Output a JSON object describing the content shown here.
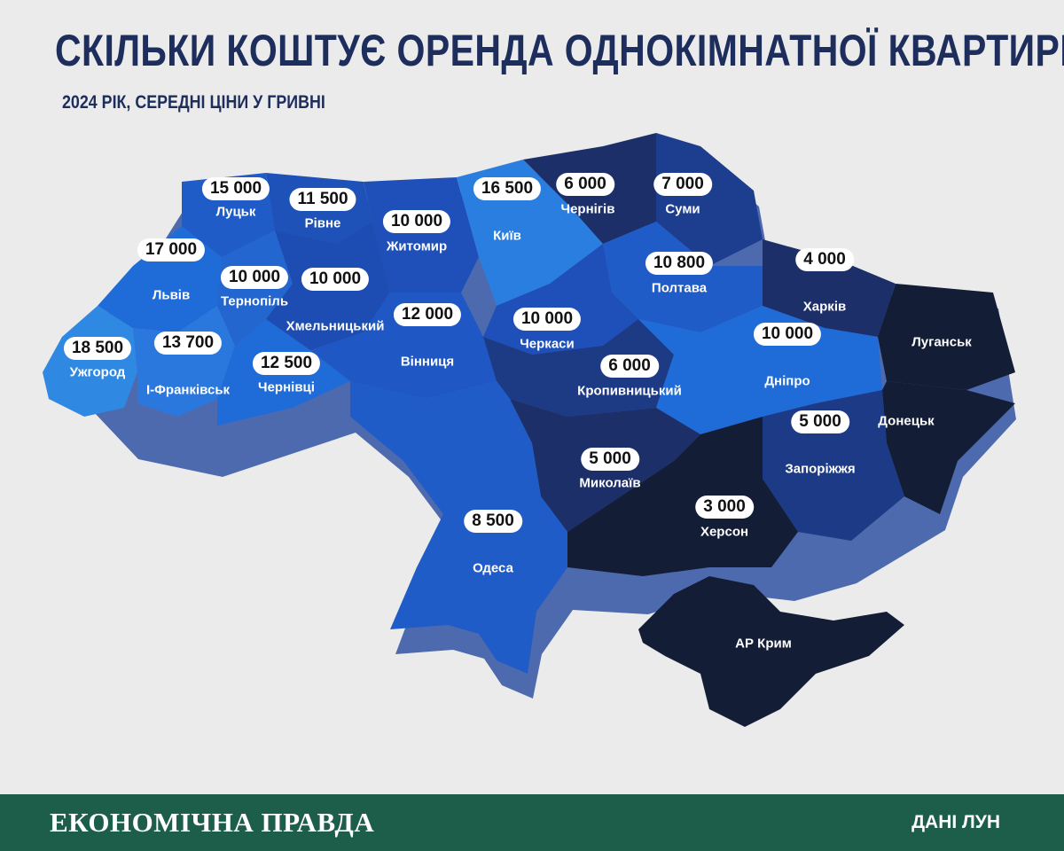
{
  "header": {
    "title": "СКІЛЬКИ КОШТУЄ ОРЕНДА ОДНОКІМНАТНОЇ КВАРТИРИ",
    "subtitle": "2024 РІК, СЕРЕДНІ ЦІНИ У ГРИВНІ"
  },
  "legend_colors": {
    "very_dark": "#141d36",
    "dark": "#1c2f69",
    "medium": "#1f4fb8",
    "bright": "#1f6cd8",
    "light": "#2f88e2"
  },
  "regions": [
    {
      "name": "Луцьк",
      "price": "15 000"
    },
    {
      "name": "Рівне",
      "price": "11 500"
    },
    {
      "name": "Житомир",
      "price": "10 000"
    },
    {
      "name": "Київ",
      "price": "16 500"
    },
    {
      "name": "Чернігів",
      "price": "6 000"
    },
    {
      "name": "Суми",
      "price": "7 000"
    },
    {
      "name": "Львів",
      "price": "17 000"
    },
    {
      "name": "Тернопіль",
      "price": "10 000"
    },
    {
      "name": "Хмельницький",
      "price": "10 000"
    },
    {
      "name": "Вінниця",
      "price": "12 000"
    },
    {
      "name": "Черкаси",
      "price": "10 000"
    },
    {
      "name": "Полтава",
      "price": "10 800"
    },
    {
      "name": "Харків",
      "price": "4 000"
    },
    {
      "name": "Ужгород",
      "price": "18 500"
    },
    {
      "name": "І-Франківськ",
      "price": "13 700"
    },
    {
      "name": "Чернівці",
      "price": "12 500"
    },
    {
      "name": "Кропивницький",
      "price": "6 000"
    },
    {
      "name": "Дніпро",
      "price": "10 000"
    },
    {
      "name": "Луганськ",
      "price": ""
    },
    {
      "name": "Донецьк",
      "price": ""
    },
    {
      "name": "Запоріжжя",
      "price": "5 000"
    },
    {
      "name": "Миколаїв",
      "price": "5 000"
    },
    {
      "name": "Херсон",
      "price": "3 000"
    },
    {
      "name": "Одеса",
      "price": "8 500"
    },
    {
      "name": "АР Крим",
      "price": ""
    }
  ],
  "footer": {
    "brand": "ЕКОНОМІЧНА ПРАВДА",
    "source": "ДАНІ ЛУН"
  }
}
